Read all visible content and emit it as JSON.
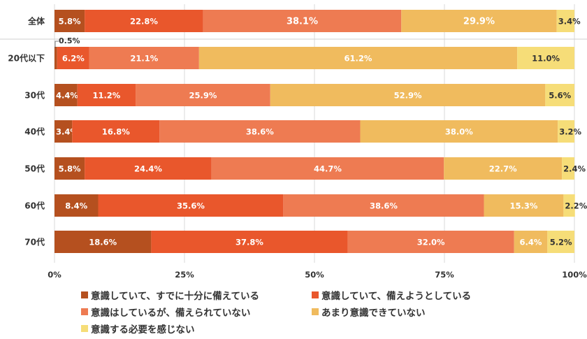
{
  "chart_data": {
    "type": "bar",
    "orientation": "horizontal",
    "stacked": true,
    "categories": [
      "全体",
      "20代以下",
      "30代",
      "40代",
      "50代",
      "60代",
      "70代"
    ],
    "series": [
      {
        "name": "意識していて、すでに十分に備えている",
        "color": "#B5501F",
        "values": [
          5.8,
          0.5,
          4.4,
          3.4,
          5.8,
          8.4,
          18.6
        ],
        "labels": [
          "5.8%",
          "0.5%",
          "4.4%",
          "3.4%",
          "5.8%",
          "8.4%",
          "18.6%"
        ]
      },
      {
        "name": "意識していて、備えようとしている",
        "color": "#E9572C",
        "values": [
          22.8,
          6.2,
          11.2,
          16.8,
          24.4,
          35.6,
          37.8
        ],
        "labels": [
          "22.8%",
          "6.2%",
          "11.2%",
          "16.8%",
          "24.4%",
          "35.6%",
          "37.8%"
        ]
      },
      {
        "name": "意識はしているが、備えられていない",
        "color": "#EE7B52",
        "values": [
          38.1,
          21.1,
          25.9,
          38.6,
          44.7,
          38.6,
          32.0
        ],
        "labels": [
          "38.1%",
          "21.1%",
          "25.9%",
          "38.6%",
          "44.7%",
          "38.6%",
          "32.0%"
        ]
      },
      {
        "name": "あまり意識できていない",
        "color": "#F0BB5E",
        "values": [
          29.9,
          61.2,
          52.9,
          38.0,
          22.7,
          15.3,
          6.4
        ],
        "labels": [
          "29.9%",
          "61.2%",
          "52.9%",
          "38.0%",
          "22.7%",
          "15.3%",
          "6.4%"
        ]
      },
      {
        "name": "意識する必要を感じない",
        "color": "#F6DD78",
        "values": [
          3.4,
          11.0,
          5.6,
          3.2,
          2.4,
          2.2,
          5.2
        ],
        "labels": [
          "3.4%",
          "11.0%",
          "5.6%",
          "3.2%",
          "2.4%",
          "2.2%",
          "5.2%"
        ]
      }
    ],
    "xlim": [
      0,
      100
    ],
    "x_ticks": [
      "0%",
      "25%",
      "50%",
      "75%",
      "100%"
    ],
    "grid": true,
    "legend_placement": "bottom"
  }
}
